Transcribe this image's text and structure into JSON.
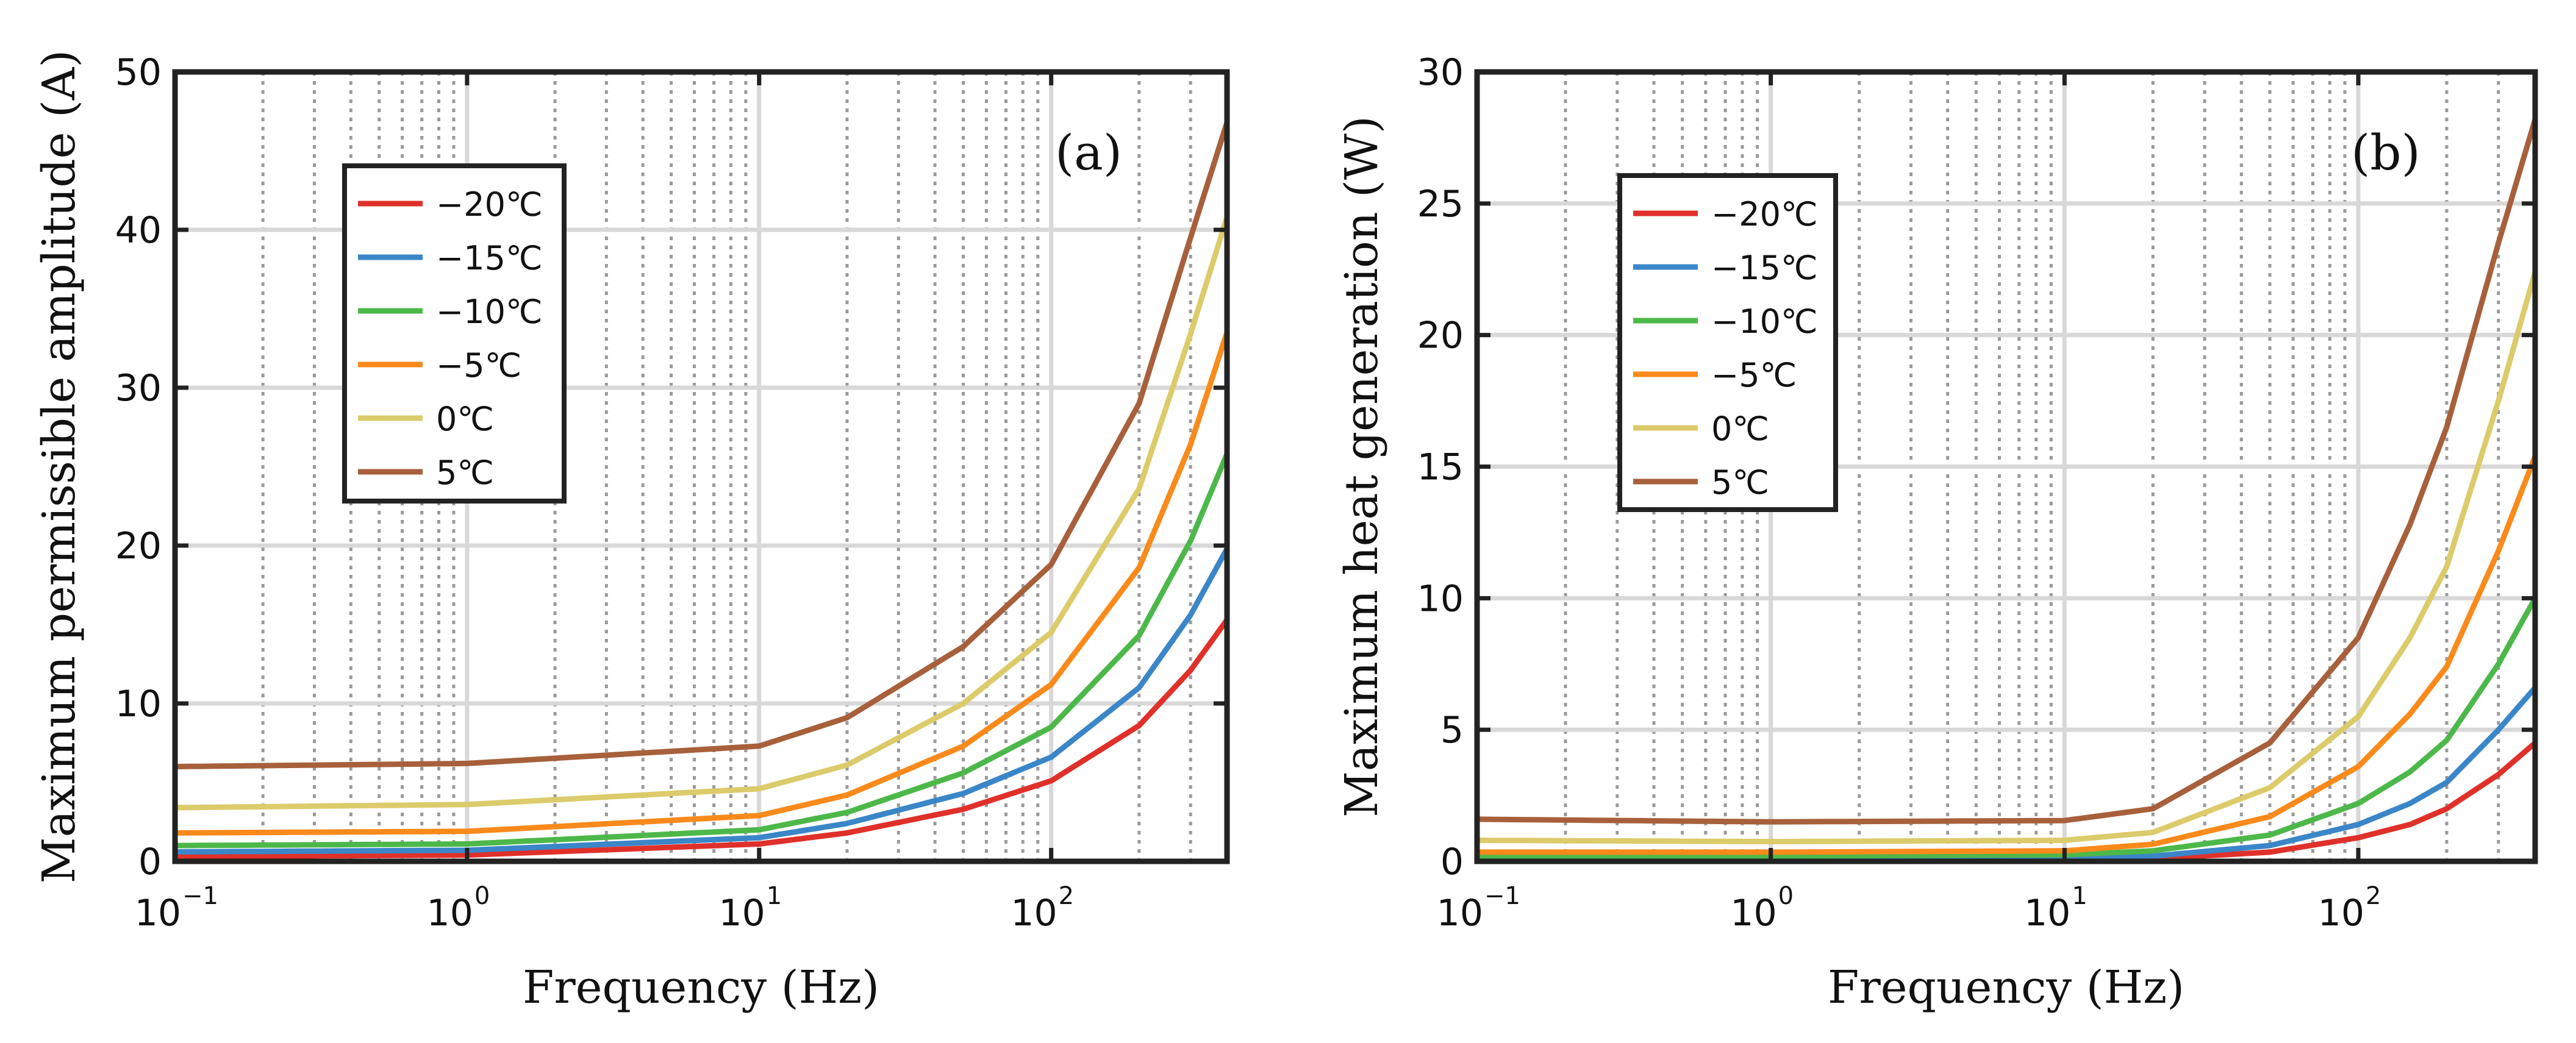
{
  "chart_data": [
    {
      "type": "line",
      "panel_label": "(a)",
      "xlabel": "Frequency (Hz)",
      "ylabel": "Maximum permissible amplitude (A)",
      "xscale": "log",
      "xlim": [
        0.1,
        400
      ],
      "ylim": [
        0,
        50
      ],
      "xticks": [
        0.1,
        1,
        10,
        100
      ],
      "xtick_labels": [
        {
          "base": "10",
          "exp": "−1"
        },
        {
          "base": "10",
          "exp": "0"
        },
        {
          "base": "10",
          "exp": "1"
        },
        {
          "base": "10",
          "exp": "2"
        }
      ],
      "yticks": [
        0,
        10,
        20,
        30,
        40,
        50
      ],
      "ytick_labels": [
        "0",
        "10",
        "20",
        "30",
        "40",
        "50"
      ],
      "grid": true,
      "legend_position": "upper-left",
      "series": [
        {
          "name": "−20℃",
          "color": "#e0302a",
          "x": [
            0.1,
            1,
            10,
            20,
            50,
            100,
            200,
            300,
            400
          ],
          "y": [
            0.3,
            0.4,
            1.1,
            1.8,
            3.3,
            5.1,
            8.6,
            12.1,
            15.3
          ]
        },
        {
          "name": "−15℃",
          "color": "#3a86c8",
          "x": [
            0.1,
            1,
            10,
            20,
            50,
            100,
            200,
            300,
            400
          ],
          "y": [
            0.6,
            0.7,
            1.5,
            2.4,
            4.3,
            6.6,
            11.0,
            15.6,
            19.8
          ]
        },
        {
          "name": "−10℃",
          "color": "#4db84a",
          "x": [
            0.1,
            1,
            10,
            20,
            50,
            100,
            200,
            300,
            400
          ],
          "y": [
            1.0,
            1.1,
            2.0,
            3.1,
            5.6,
            8.5,
            14.3,
            20.3,
            25.8
          ]
        },
        {
          "name": "−5℃",
          "color": "#f98a1b",
          "x": [
            0.1,
            1,
            10,
            20,
            50,
            100,
            200,
            300,
            400
          ],
          "y": [
            1.8,
            1.9,
            2.9,
            4.2,
            7.3,
            11.2,
            18.6,
            26.4,
            33.5
          ]
        },
        {
          "name": "0℃",
          "color": "#dccb6a",
          "x": [
            0.1,
            1,
            10,
            20,
            50,
            100,
            200,
            300,
            400
          ],
          "y": [
            3.4,
            3.6,
            4.6,
            6.1,
            10.0,
            14.5,
            23.6,
            33.4,
            40.8
          ]
        },
        {
          "name": "5℃",
          "color": "#a7603b",
          "x": [
            0.1,
            1,
            10,
            20,
            50,
            100,
            200,
            300,
            400
          ],
          "y": [
            6.0,
            6.2,
            7.3,
            9.1,
            13.6,
            18.8,
            29.0,
            39.5,
            46.8
          ]
        }
      ]
    },
    {
      "type": "line",
      "panel_label": "(b)",
      "xlabel": "Frequency (Hz)",
      "ylabel": "Maximum heat generation (W)",
      "xscale": "log",
      "xlim": [
        0.1,
        400
      ],
      "ylim": [
        0,
        30
      ],
      "xticks": [
        0.1,
        1,
        10,
        100
      ],
      "xtick_labels": [
        {
          "base": "10",
          "exp": "−1"
        },
        {
          "base": "10",
          "exp": "0"
        },
        {
          "base": "10",
          "exp": "1"
        },
        {
          "base": "10",
          "exp": "2"
        }
      ],
      "yticks": [
        0,
        5,
        10,
        15,
        20,
        25,
        30
      ],
      "ytick_labels": [
        "0",
        "5",
        "10",
        "15",
        "20",
        "25",
        "30"
      ],
      "grid": true,
      "legend_position": "upper-left",
      "series": [
        {
          "name": "−20℃",
          "color": "#e0302a",
          "x": [
            0.1,
            1,
            10,
            20,
            50,
            100,
            150,
            200,
            300,
            400
          ],
          "y": [
            0.05,
            0.05,
            0.06,
            0.1,
            0.35,
            0.9,
            1.4,
            2.0,
            3.3,
            4.5
          ]
        },
        {
          "name": "−15℃",
          "color": "#3a86c8",
          "x": [
            0.1,
            1,
            10,
            20,
            50,
            100,
            150,
            200,
            300,
            400
          ],
          "y": [
            0.1,
            0.1,
            0.12,
            0.2,
            0.6,
            1.4,
            2.2,
            3.0,
            5.0,
            6.6
          ]
        },
        {
          "name": "−10℃",
          "color": "#4db84a",
          "x": [
            0.1,
            1,
            10,
            20,
            50,
            100,
            150,
            200,
            300,
            400
          ],
          "y": [
            0.2,
            0.2,
            0.25,
            0.4,
            1.0,
            2.2,
            3.4,
            4.6,
            7.5,
            10.0
          ]
        },
        {
          "name": "−5℃",
          "color": "#f98a1b",
          "x": [
            0.1,
            1,
            10,
            20,
            50,
            100,
            150,
            200,
            300,
            400
          ],
          "y": [
            0.35,
            0.35,
            0.4,
            0.65,
            1.7,
            3.6,
            5.6,
            7.4,
            11.8,
            15.4
          ]
        },
        {
          "name": "0℃",
          "color": "#dccb6a",
          "x": [
            0.1,
            1,
            10,
            20,
            50,
            100,
            150,
            200,
            300,
            400
          ],
          "y": [
            0.8,
            0.75,
            0.8,
            1.1,
            2.8,
            5.5,
            8.5,
            11.2,
            17.5,
            22.4
          ]
        },
        {
          "name": "5℃",
          "color": "#a7603b",
          "x": [
            0.1,
            1,
            10,
            20,
            50,
            100,
            150,
            200,
            300,
            400
          ],
          "y": [
            1.6,
            1.5,
            1.55,
            2.0,
            4.5,
            8.5,
            12.8,
            16.5,
            23.5,
            28.2
          ]
        }
      ]
    }
  ]
}
